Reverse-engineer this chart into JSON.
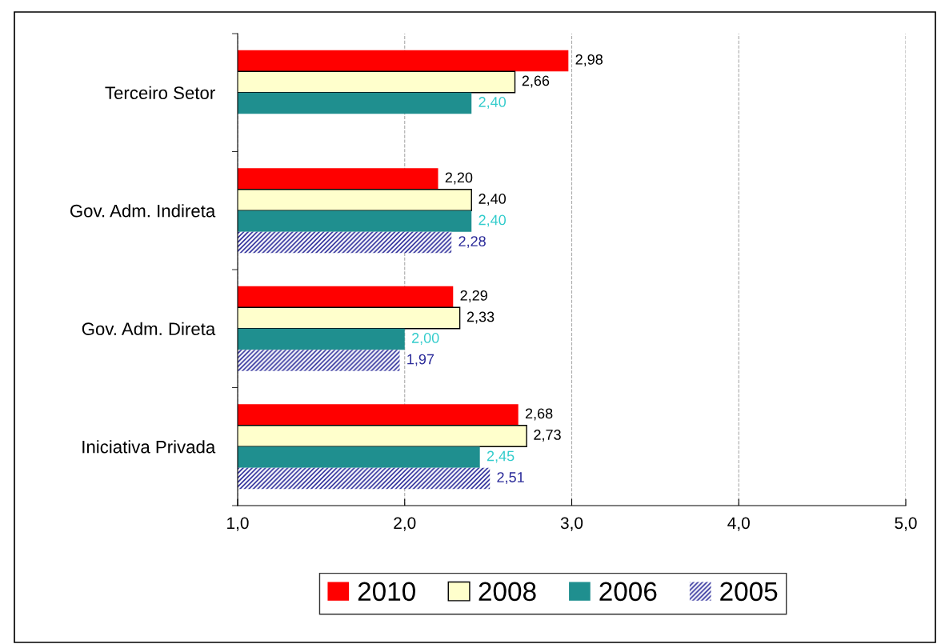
{
  "chart_data": {
    "type": "bar",
    "orientation": "horizontal",
    "categories": [
      "Terceiro Setor",
      "Gov. Adm. Indireta",
      "Gov. Adm. Direta",
      "Iniciativa Privada"
    ],
    "series": [
      {
        "name": "2010",
        "color": "#ff0000",
        "values": [
          2.98,
          2.2,
          2.29,
          2.68
        ],
        "value_labels": [
          "2,98",
          "2,20",
          "2,29",
          "2,68"
        ]
      },
      {
        "name": "2008",
        "color": "#ffffcc",
        "values": [
          2.66,
          2.4,
          2.33,
          2.73
        ],
        "value_labels": [
          "2,66",
          "2,40",
          "2,33",
          "2,73"
        ]
      },
      {
        "name": "2006",
        "color": "#1f8f8f",
        "values": [
          2.4,
          2.4,
          2.0,
          2.45
        ],
        "value_labels": [
          "2,40",
          "2,40",
          "2,00",
          "2,45"
        ]
      },
      {
        "name": "2005",
        "color": "#2a2a99",
        "values": [
          null,
          2.28,
          1.97,
          2.51
        ],
        "value_labels": [
          null,
          "2,28",
          "1,97",
          "2,51"
        ]
      }
    ],
    "xlim": [
      1,
      5
    ],
    "xticks": [
      {
        "value": 1,
        "label": "1,0"
      },
      {
        "value": 2,
        "label": "2,0"
      },
      {
        "value": 3,
        "label": "3,0"
      },
      {
        "value": 4,
        "label": "4,0"
      },
      {
        "value": 5,
        "label": "5,0"
      }
    ],
    "grid": "x",
    "legend": "bottom"
  }
}
